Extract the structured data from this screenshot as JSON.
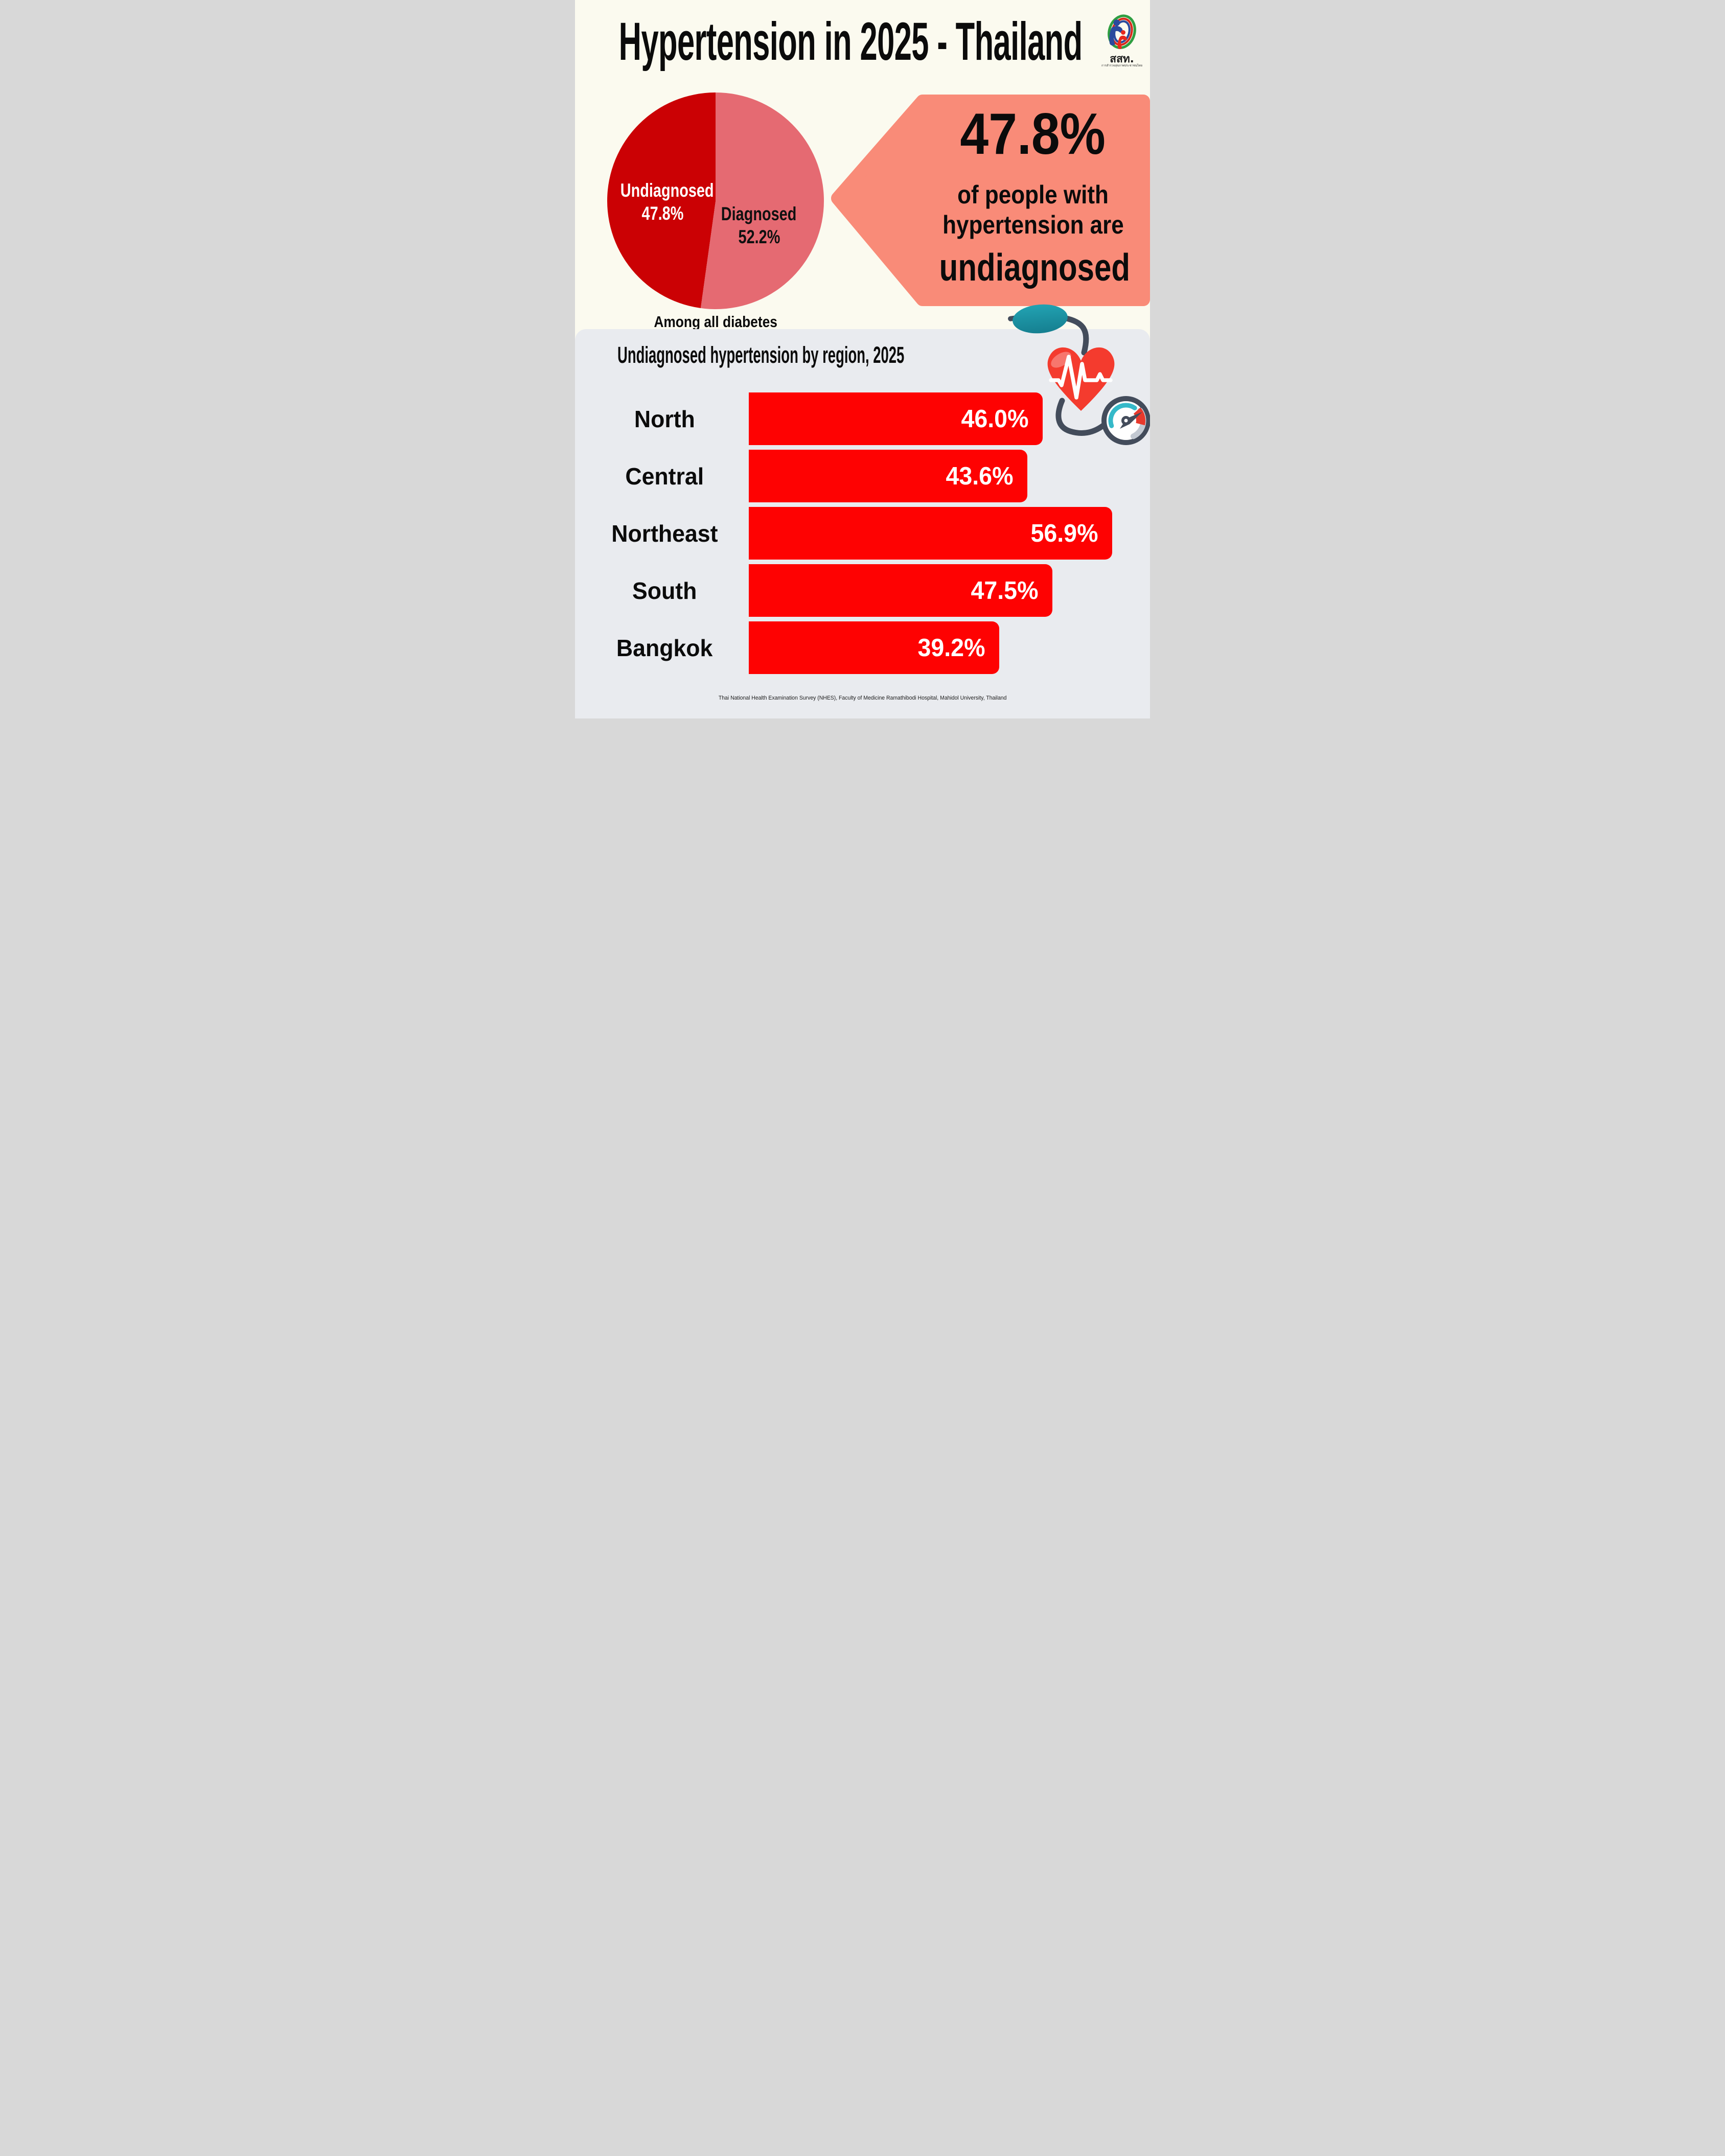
{
  "header": {
    "title": "Hypertension in 2025 - Thailand"
  },
  "logo": {
    "acronym": "สสท.",
    "subtitle": "การสำรวจสุขภาพประชาชนไทย"
  },
  "callout": {
    "stat": "47.8%",
    "line1": "of people with",
    "line2": "hypertension are",
    "line3": "undiagnosed"
  },
  "footer": {
    "source": "Thai National Health Examination Survey (NHES), Faculty of Medicine Ramathibodi Hospital, Mahidol University, Thailand"
  },
  "colors": {
    "background_top": "#fbfaef",
    "background_panel": "#e9ebef",
    "callout_salmon": "#f98b78",
    "pie_undiagnosed_red": "#cb0104",
    "pie_diagnosed_pink": "#e56a72",
    "bar_red": "#fe0202",
    "text_black": "#0b0b0b",
    "bulb_teal": "#1e95a6",
    "tube_slate": "#434c5b",
    "heart_red": "#f43b2e",
    "gauge_teal": "#35b9c9",
    "gauge_red": "#e8392c"
  },
  "chart_data": [
    {
      "type": "pie",
      "title": "Among all diabetes",
      "slices": [
        {
          "label": "Undiagnosed",
          "value": 47.8,
          "display": "47.8%",
          "color": "#cb0104",
          "text_color": "#ffffff"
        },
        {
          "label": "Diagnosed",
          "value": 52.2,
          "display": "52.2%",
          "color": "#e56a72",
          "text_color": "#101010"
        }
      ],
      "legend_position": "inside",
      "start_angle_deg": 0
    },
    {
      "type": "bar",
      "orientation": "horizontal",
      "title": "Undiagnosed hypertension by region, 2025",
      "categories": [
        "North",
        "Central",
        "Northeast",
        "South",
        "Bangkok"
      ],
      "values": [
        46.0,
        43.6,
        56.9,
        47.5,
        39.2
      ],
      "value_labels": [
        "46.0%",
        "43.6%",
        "56.9%",
        "47.5%",
        "39.2%"
      ],
      "unit": "percent",
      "xlim": [
        0,
        60
      ],
      "bar_color": "#fe0202",
      "grid": false,
      "legend_position": "none"
    }
  ]
}
